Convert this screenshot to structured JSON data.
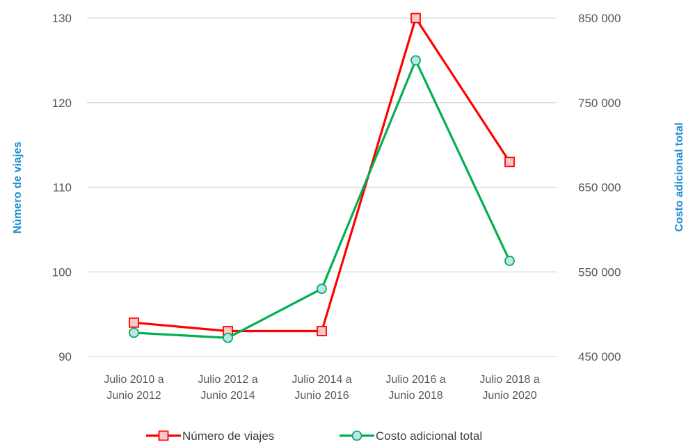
{
  "chart_data": {
    "type": "line",
    "title": "",
    "categories": [
      [
        "Julio 2010 a",
        "Junio 2012"
      ],
      [
        "Julio 2012 a",
        "Junio 2014"
      ],
      [
        "Julio 2014 a",
        "Junio 2016"
      ],
      [
        "Julio 2016 a",
        "Junio 2018"
      ],
      [
        "Julio 2018 a",
        "Junio 2020"
      ]
    ],
    "ylabel_left": "Número de viajes",
    "ylabel_right": "Costo adicional total",
    "ylim_left": [
      90,
      130
    ],
    "yticks_left": [
      "90",
      "100",
      "110",
      "120",
      "130"
    ],
    "yticks_left_values": [
      90,
      100,
      110,
      120,
      130
    ],
    "ylim_right": [
      450000,
      850000
    ],
    "yticks_right": [
      "450 000",
      "550 000",
      "650 000",
      "750 000",
      "850 000"
    ],
    "yticks_right_values": [
      450000,
      550000,
      650000,
      750000,
      850000
    ],
    "grid": true,
    "legend_position": "bottom",
    "series": [
      {
        "name": "Número de viajes",
        "axis": "left",
        "values": [
          94,
          93,
          93,
          130,
          113
        ],
        "color": "#ff0000",
        "marker": "square",
        "marker_fill": "#f8c8c8"
      },
      {
        "name": "Costo adicional total",
        "axis": "right",
        "values": [
          478000,
          472000,
          530000,
          800000,
          563000
        ],
        "color": "#00b050",
        "marker": "circle",
        "marker_fill": "#bfe3ef"
      }
    ],
    "colors": {
      "axis_title": "#1f8fd0",
      "grid": "#d9d9d9",
      "tick_text": "#595959"
    }
  }
}
